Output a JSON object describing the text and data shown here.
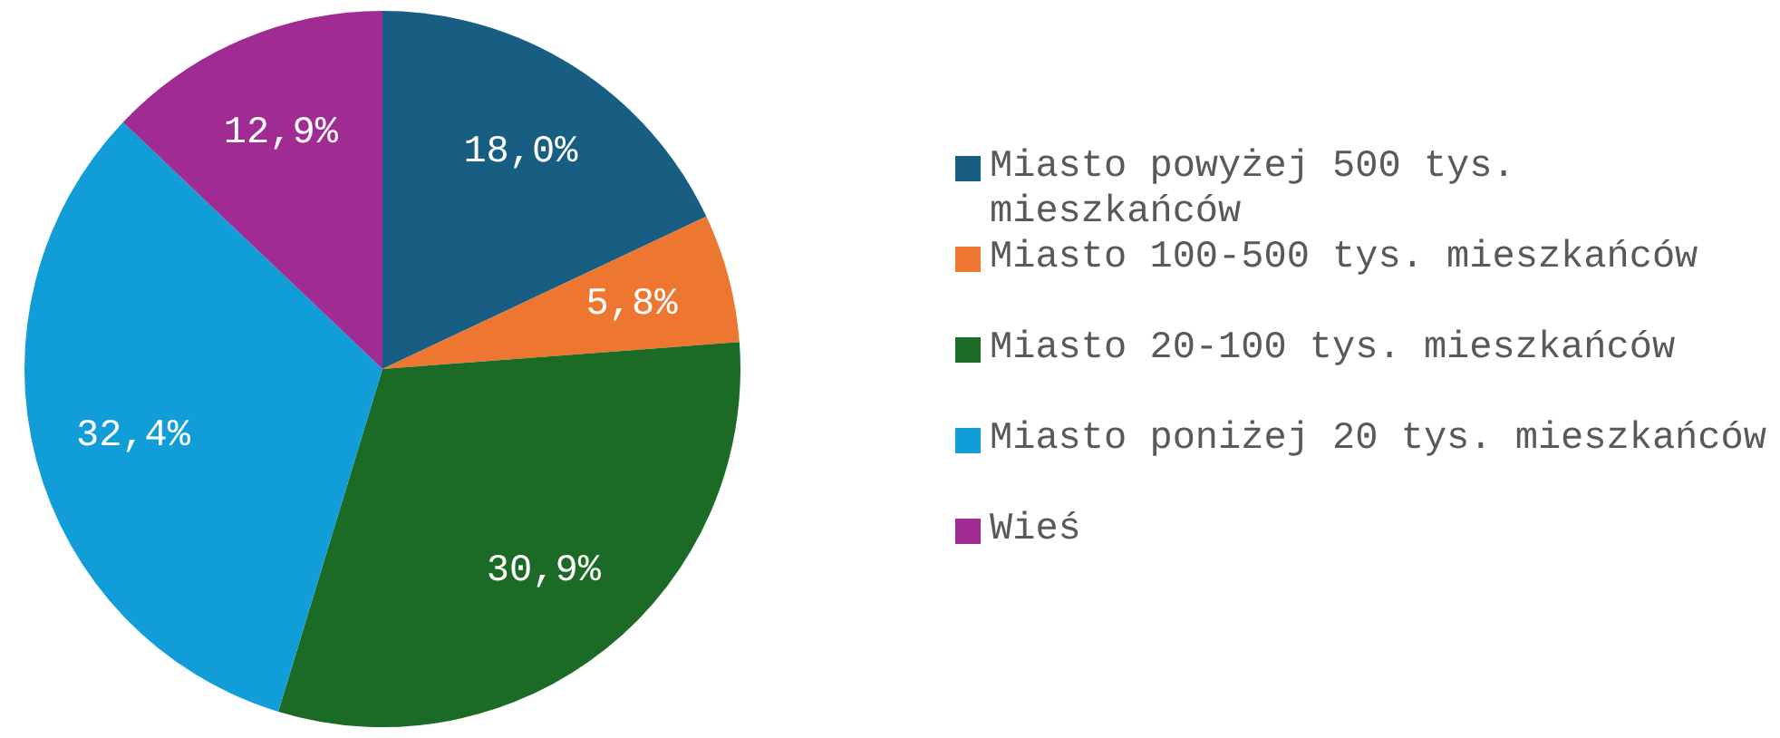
{
  "chart_data": {
    "type": "pie",
    "categories": [
      "Miasto powyżej 500 tys. mieszkańców",
      "Miasto 100-500 tys. mieszkańców",
      "Miasto 20-100 tys. mieszkańców",
      "Miasto poniżej 20 tys. mieszkańców",
      "Wieś"
    ],
    "values": [
      18.0,
      5.8,
      30.9,
      32.4,
      12.9
    ],
    "value_labels": [
      "18,0%",
      "5,8%",
      "30,9%",
      "32,4%",
      "12,9%"
    ],
    "colors": [
      "#175e82",
      "#ed7631",
      "#1b6b27",
      "#119dd8",
      "#a02b93"
    ],
    "legend": "right"
  }
}
